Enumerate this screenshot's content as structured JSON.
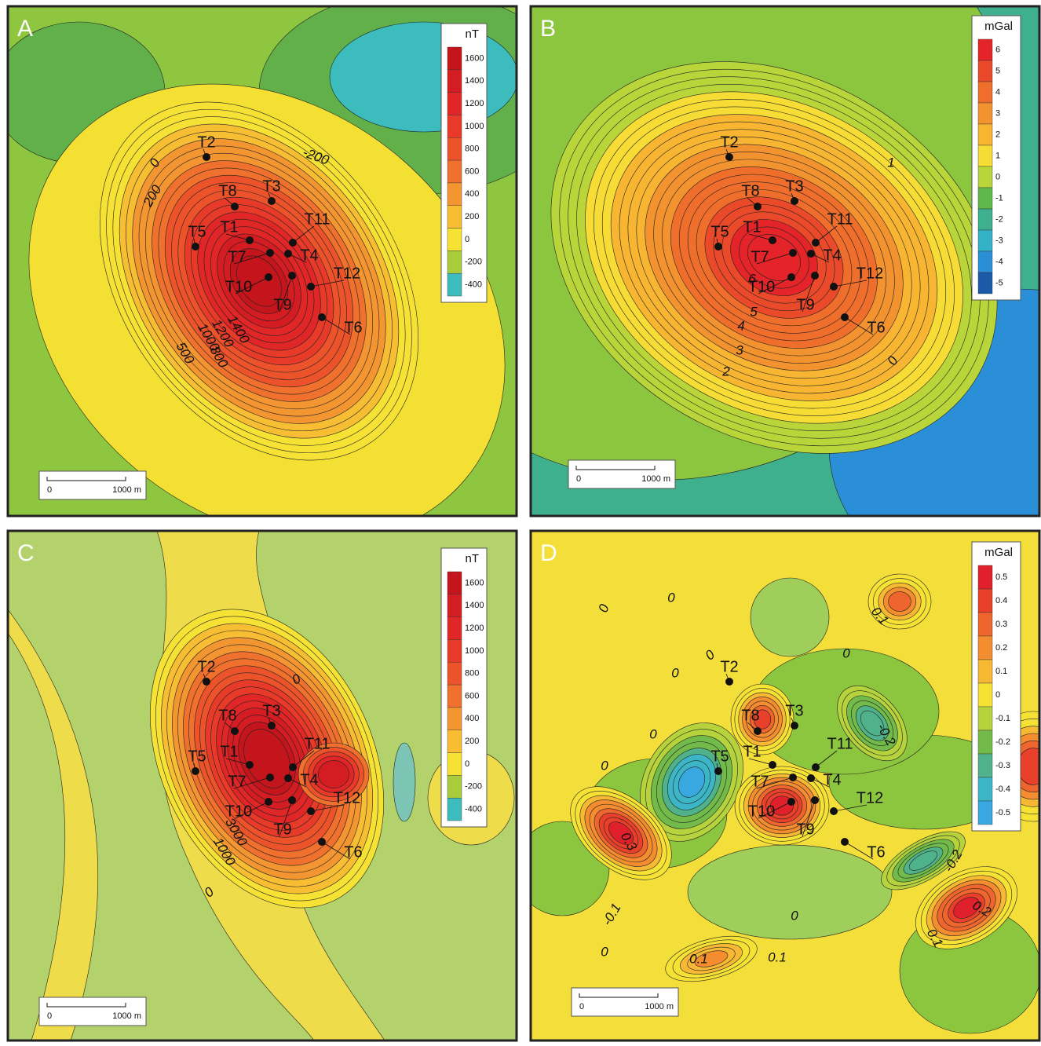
{
  "panels": [
    {
      "letter": "A",
      "unit": "nT",
      "ticks": [
        1600,
        1400,
        1200,
        1000,
        800,
        600,
        400,
        200,
        0,
        -200,
        -400
      ],
      "colors": [
        "#c4151c",
        "#d41c23",
        "#e02626",
        "#e83a29",
        "#ec532b",
        "#ef712d",
        "#f39531",
        "#f7bd33",
        "#f6e234",
        "#a9cc3c",
        "#3cbcbc"
      ],
      "stations": [
        "T2",
        "T8",
        "T3",
        "T1",
        "T5",
        "T11",
        "T7",
        "T4",
        "T10",
        "T9",
        "T12",
        "T6"
      ],
      "contour_labels": [
        "0",
        "200",
        "-200",
        "1400",
        "1200",
        "1000",
        "800",
        "500"
      ],
      "scale": [
        "0",
        "1000 m"
      ]
    },
    {
      "letter": "B",
      "unit": "mGal",
      "ticks": [
        6,
        5,
        4,
        3,
        2,
        1,
        0,
        -1,
        -2,
        -3,
        -4,
        -5
      ],
      "colors": [
        "#e42428",
        "#ea4a2a",
        "#ef6e2c",
        "#f3932f",
        "#f7b532",
        "#f6dc34",
        "#b9d53a",
        "#5fb84a",
        "#3fb08e",
        "#34b2c8",
        "#2a8fd6",
        "#1a5aa8"
      ],
      "stations": [
        "T2",
        "T8",
        "T3",
        "T1",
        "T5",
        "T11",
        "T7",
        "T4",
        "T10",
        "T9",
        "T12",
        "T6"
      ],
      "contour_labels": [
        "1",
        "6",
        "5",
        "4",
        "3",
        "2",
        "0"
      ],
      "scale": [
        "0",
        "1000 m"
      ]
    },
    {
      "letter": "C",
      "unit": "nT",
      "ticks": [
        1600,
        1400,
        1200,
        1000,
        800,
        600,
        400,
        200,
        0,
        -200,
        -400
      ],
      "colors": [
        "#c4151c",
        "#d41c23",
        "#e02626",
        "#e83a29",
        "#ec532b",
        "#ef712d",
        "#f39531",
        "#f7bd33",
        "#f6e234",
        "#a9cc3c",
        "#3cbcbc"
      ],
      "stations": [
        "T2",
        "T8",
        "T3",
        "T1",
        "T5",
        "T11",
        "T7",
        "T4",
        "T10",
        "T9",
        "T12",
        "T6"
      ],
      "contour_labels": [
        "0",
        "0",
        "3000",
        "1000"
      ],
      "scale": [
        "0",
        "1000 m"
      ]
    },
    {
      "letter": "D",
      "unit": "mGal",
      "ticks": [
        0.5,
        0.4,
        0.3,
        0.2,
        0.1,
        0,
        -0.1,
        -0.2,
        -0.3,
        -0.4,
        -0.5
      ],
      "colors": [
        "#e0202a",
        "#e8402b",
        "#ee652d",
        "#f38d30",
        "#f7b833",
        "#f5e235",
        "#b6d23c",
        "#72bb4a",
        "#4fb28a",
        "#3cb6c6",
        "#3aa8e0"
      ],
      "stations": [
        "T2",
        "T8",
        "T3",
        "T1",
        "T5",
        "T11",
        "T7",
        "T4",
        "T10",
        "T9",
        "T12",
        "T6"
      ],
      "contour_labels": [
        "0",
        "0",
        "0",
        "0",
        "0",
        "0",
        "0",
        "0.1",
        "-0.2",
        "0.3",
        "-0.1",
        "0.1",
        "0.1",
        "0",
        "0.2",
        "-0.2",
        "0",
        "0.1"
      ],
      "scale": [
        "0",
        "1000 m"
      ]
    }
  ]
}
